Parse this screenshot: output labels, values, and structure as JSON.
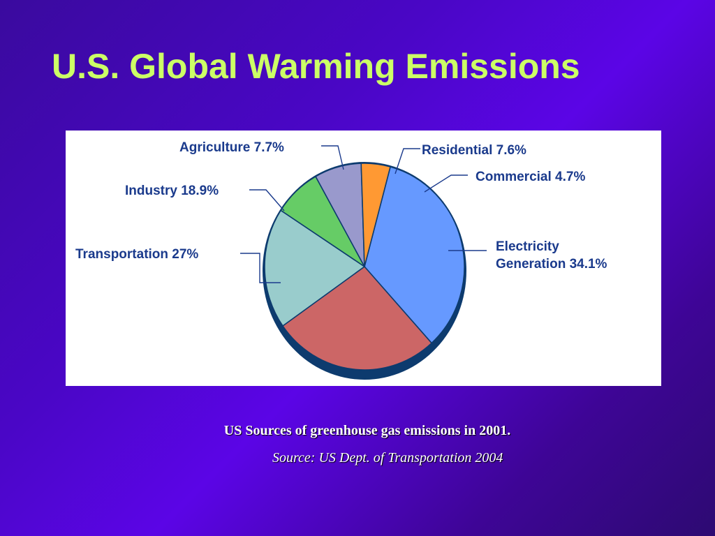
{
  "slide": {
    "title": "U.S. Global Warming Emissions",
    "caption": "US Sources of greenhouse gas emissions in 2001.",
    "source": "Source: US Dept. of Transportation 2004"
  },
  "chart_data": {
    "type": "pie",
    "title": "",
    "slices": [
      {
        "label": "Electricity Generation 34.1%",
        "value": 34.1,
        "color": "#6699ff"
      },
      {
        "label": "Transportation 27%",
        "value": 27,
        "color": "#cc6666"
      },
      {
        "label": "Industry 18.9%",
        "value": 18.9,
        "color": "#99cccc"
      },
      {
        "label": "Agriculture 7.7%",
        "value": 7.7,
        "color": "#66cc66"
      },
      {
        "label": "Residential 7.6%",
        "value": 7.6,
        "color": "#9999cc"
      },
      {
        "label": "Commercial 4.7%",
        "value": 4.7,
        "color": "#ff9933"
      }
    ],
    "legend": "none",
    "outline_color": "#0d3b6e"
  }
}
